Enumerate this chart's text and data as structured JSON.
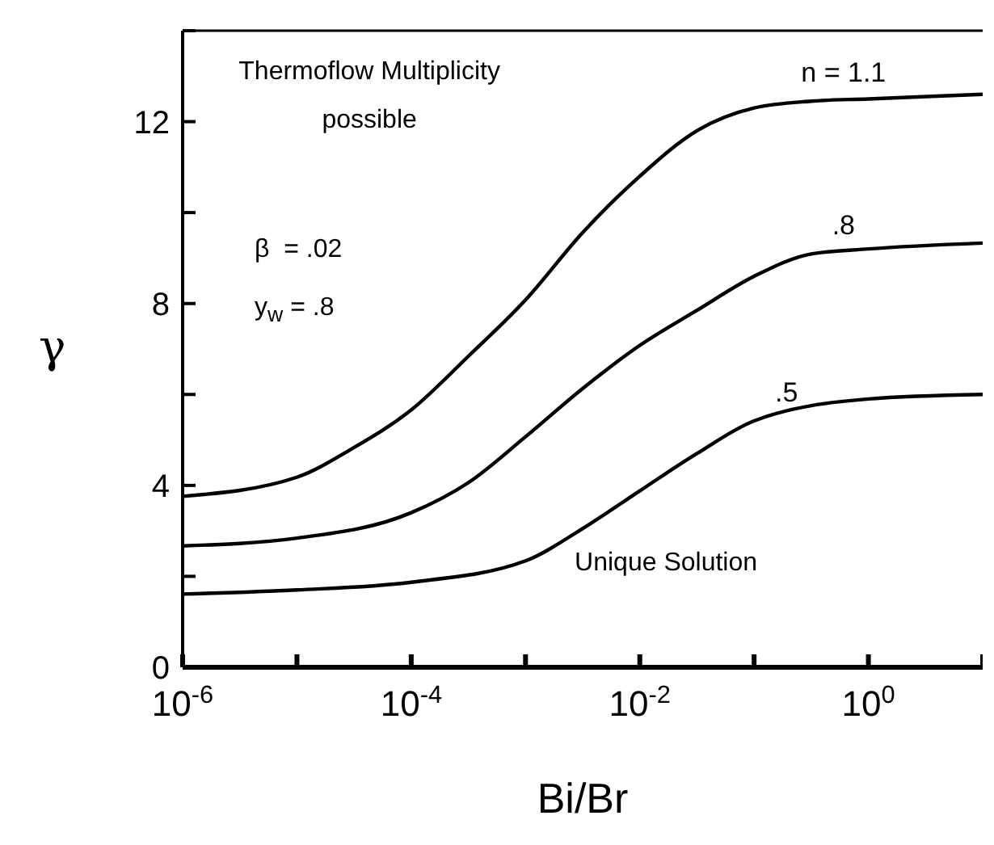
{
  "chart_data": {
    "type": "line",
    "xlabel": "Bi/Br",
    "ylabel": "γ",
    "log": "x",
    "xlim": [
      1e-06,
      10
    ],
    "ylim": [
      0,
      14
    ],
    "xticks": [
      {
        "value": 1e-06,
        "label": "10$^{-6}$"
      },
      {
        "value": 1e-05,
        "label": null
      },
      {
        "value": 0.0001,
        "label": "10$^{-4}$"
      },
      {
        "value": 0.001,
        "label": null
      },
      {
        "value": 0.01,
        "label": "10$^{-2}$"
      },
      {
        "value": 0.1,
        "label": null
      },
      {
        "value": 1,
        "label": "10$^{0}$"
      },
      {
        "value": 10,
        "label": null
      }
    ],
    "yticks": [
      0,
      {
        "value": 2,
        "label": null
      },
      4,
      {
        "value": 6,
        "label": null
      },
      8,
      {
        "value": 10,
        "label": null
      },
      12,
      {
        "value": 14,
        "label": null
      }
    ],
    "grid": false,
    "legend": false,
    "marker": "none",
    "line_style": "solid",
    "annotations": [
      "Thermoflow Multiplicity\npossible",
      "β  = .02",
      "y$_{w}$ = .8",
      "Unique Solution"
    ],
    "series": [
      {
        "name": "n = 1.1",
        "color": "#000000",
        "x": [
          1e-06,
          1e-05,
          3e-05,
          0.0001,
          0.000316,
          0.001,
          0.00316,
          0.01,
          0.0316,
          0.1,
          0.316,
          1,
          10
        ],
        "values": [
          3.76,
          4.18,
          4.8,
          5.66,
          6.84,
          8.08,
          9.56,
          10.8,
          11.8,
          12.3,
          12.45,
          12.5,
          12.6
        ]
      },
      {
        "name": ".8",
        "color": "#000000",
        "x": [
          1e-06,
          1e-05,
          0.0001,
          0.000316,
          0.001,
          0.00316,
          0.01,
          0.0316,
          0.1,
          0.316,
          1,
          10
        ],
        "values": [
          2.67,
          2.84,
          3.4,
          4.06,
          5.07,
          6.13,
          7.08,
          7.85,
          8.6,
          9.09,
          9.2,
          9.33
        ]
      },
      {
        "name": ".5",
        "color": "#000000",
        "x": [
          1e-06,
          1e-05,
          0.0001,
          0.001,
          0.00316,
          0.01,
          0.0316,
          0.1,
          1,
          10
        ],
        "values": [
          1.61,
          1.7,
          1.87,
          2.34,
          3.05,
          3.88,
          4.7,
          5.42,
          5.9,
          6.0
        ]
      }
    ]
  }
}
